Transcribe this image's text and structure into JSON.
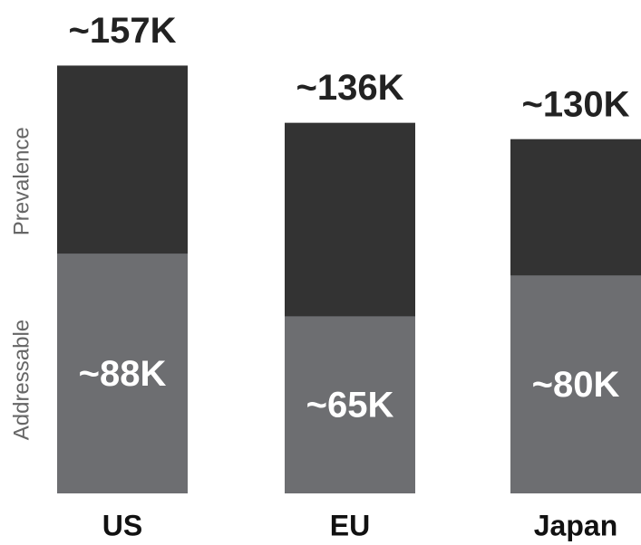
{
  "chart_data": {
    "type": "bar",
    "categories": [
      "US",
      "EU",
      "Japan"
    ],
    "series": [
      {
        "name": "Prevalence",
        "color": "#333333",
        "values": [
          157,
          136,
          130
        ],
        "value_labels": [
          "~157K",
          "~136K",
          "~130K"
        ]
      },
      {
        "name": "Addressable",
        "color": "#6d6e71",
        "values": [
          88,
          65,
          80
        ],
        "value_labels": [
          "~88K",
          "~65K",
          "~80K"
        ]
      }
    ]
  }
}
